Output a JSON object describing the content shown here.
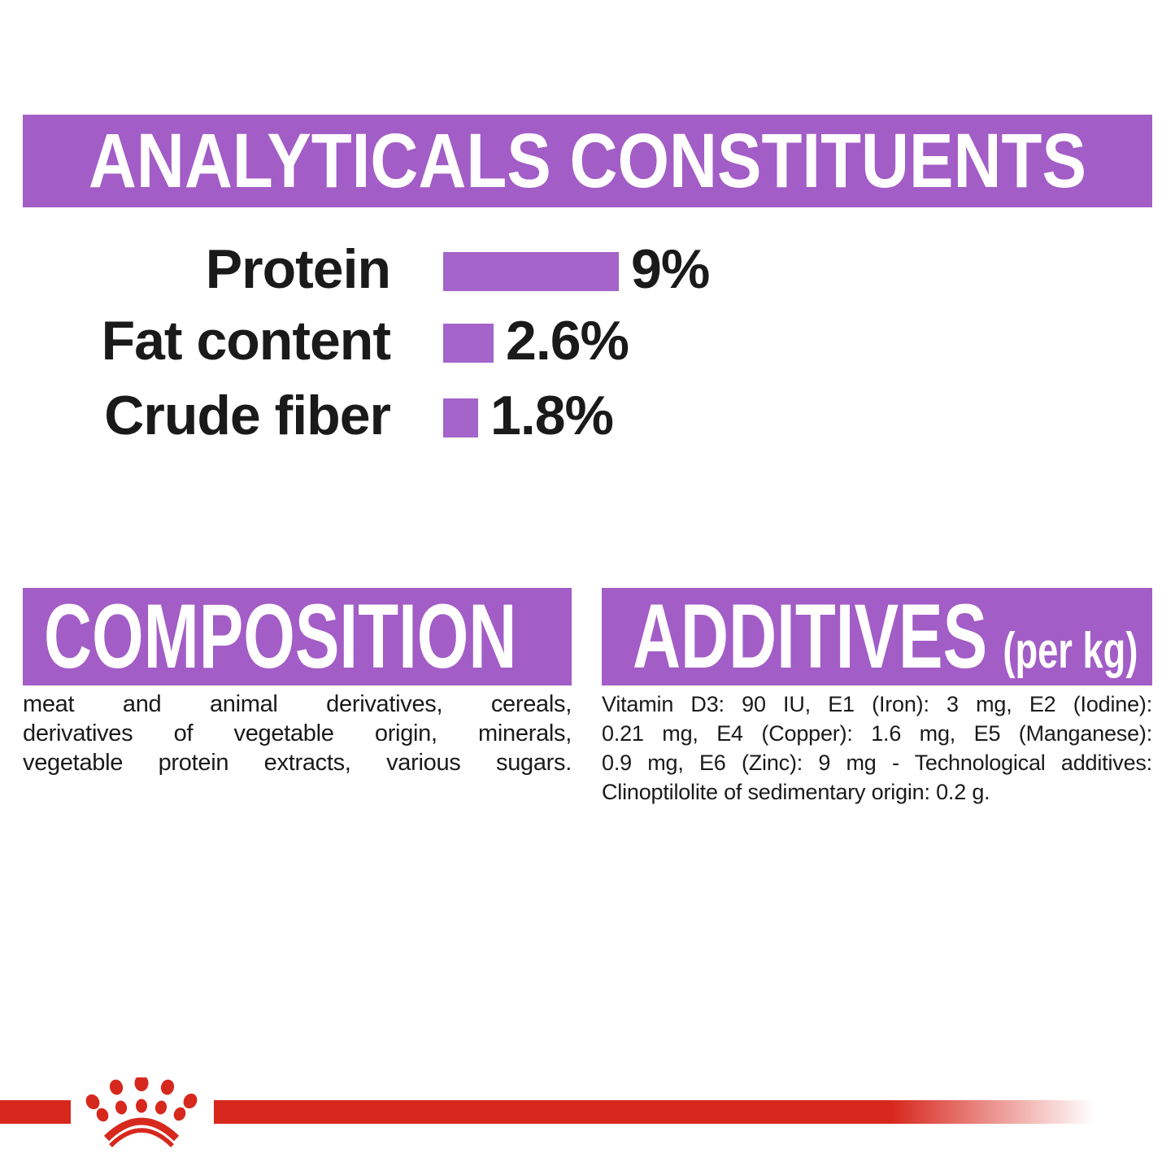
{
  "analyticals": {
    "heading": "ANALYTICALS CONSTITUENTS"
  },
  "chart_data": {
    "type": "bar",
    "orientation": "horizontal",
    "title": "ANALYTICALS CONSTITUENTS",
    "categories": [
      "Protein",
      "Fat content",
      "Crude fiber"
    ],
    "values": [
      9,
      2.6,
      1.8
    ],
    "value_labels": [
      "9%",
      "2.6%",
      "1.8%"
    ],
    "unit": "percent",
    "xlim": [
      0,
      10
    ],
    "bar_color": "#a464ca",
    "value_label_position": "right-of-bar",
    "grid": false,
    "legend": false
  },
  "composition": {
    "heading": "COMPOSITION",
    "lines": [
      "meat and animal derivatives, cereals,",
      "derivatives of vegetable origin, minerals,",
      "vegetable protein extracts, various sugars."
    ]
  },
  "additives": {
    "heading": "ADDITIVES",
    "heading_suffix": "(per kg)",
    "lines": [
      "Vitamin D3: 90 IU, E1 (Iron): 3 mg, E2 (Iodine):",
      "0.21 mg, E4 (Copper): 1.6 mg, E5 (Manganese):",
      "0.9 mg, E6 (Zinc): 9 mg - Technological additives:",
      "Clinoptilolite of sedimentary origin: 0.2 g."
    ]
  },
  "footer": {
    "logo": "royal-canin-crown"
  },
  "colors": {
    "banner_purple": "#a35dc6",
    "bar_purple": "#a464ca",
    "text_black": "#1a1a1a",
    "brand_red": "#d7281d",
    "background": "#ffffff"
  }
}
